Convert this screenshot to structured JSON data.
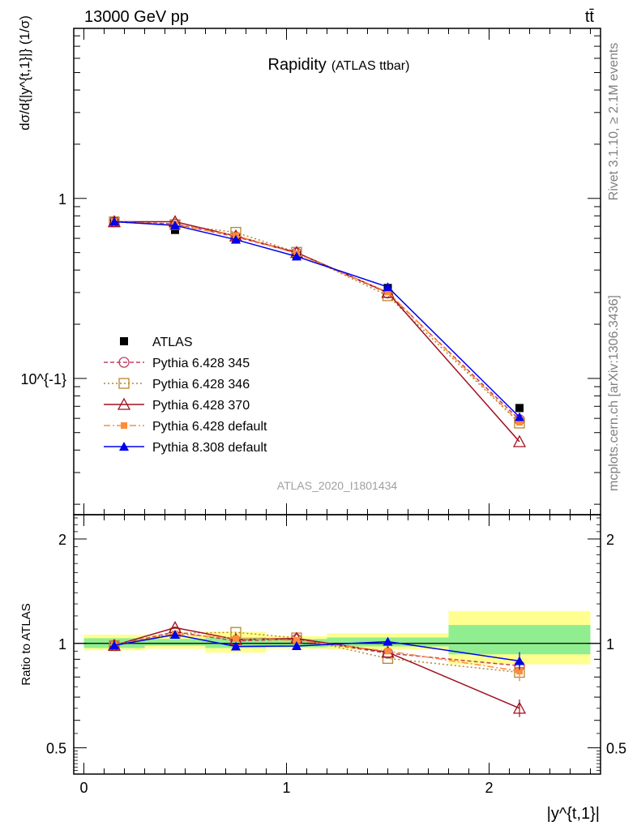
{
  "header": {
    "energy_label": "13000 GeV pp",
    "process_label": "tt̄",
    "ylabel": "dσ/d{|y^{t,1}|} (1/σ)",
    "ratio_ylabel": "Ratio to ATLAS",
    "xlabel": "|y^{t,1}|"
  },
  "title": {
    "main": "Rapidity",
    "sub": "(ATLAS ttbar)"
  },
  "watermark": "ATLAS_2020_I1801434",
  "side_labels": {
    "rivet": "Rivet 3.1.10, ≥ 2.1M events",
    "mcplots": "mcplots.cern.ch [arXiv:1306.3436]"
  },
  "colors": {
    "ATLAS": "#000000",
    "Pythia 6.428 345": "#c04060",
    "Pythia 6.428 346": "#b8862b",
    "Pythia 6.428 370": "#a01020",
    "Pythia 6.428 default": "#ff8c3a",
    "Pythia 8.308 default": "#0000ee",
    "band_inner": "#90ee90",
    "band_outer": "#ffff90"
  },
  "chart_data": [
    {
      "type": "line",
      "panel": "main",
      "title": "Rapidity (ATLAS ttbar)",
      "xlabel": "|y^{t,1}|",
      "ylabel": "dσ/d{|y^{t,1}|} (1/σ)",
      "xlim": [
        -0.05,
        2.55
      ],
      "ylim": [
        0.0175,
        8.8
      ],
      "yscale": "log",
      "ytick_labels": [
        "10^{-1}",
        "1"
      ],
      "xtick_labels": [
        "0",
        "1",
        "2"
      ],
      "x": [
        0.15,
        0.45,
        0.75,
        1.05,
        1.5,
        2.15
      ],
      "bin_edges": [
        0.0,
        0.3,
        0.6,
        0.9,
        1.2,
        1.8,
        2.5
      ],
      "legend_position": "center-left",
      "series": [
        {
          "name": "ATLAS",
          "values": [
            0.752,
            0.668,
            0.602,
            0.484,
            0.318,
            0.0685
          ]
        },
        {
          "name": "Pythia 6.428 345",
          "values": [
            0.742,
            0.722,
            0.612,
            0.498,
            0.298,
            0.059
          ]
        },
        {
          "name": "Pythia 6.428 346",
          "values": [
            0.74,
            0.715,
            0.648,
            0.502,
            0.288,
            0.0565
          ]
        },
        {
          "name": "Pythia 6.428 370",
          "values": [
            0.742,
            0.742,
            0.618,
            0.5,
            0.3,
            0.0445
          ]
        },
        {
          "name": "Pythia 6.428 default",
          "values": [
            0.745,
            0.712,
            0.622,
            0.494,
            0.302,
            0.057
          ]
        },
        {
          "name": "Pythia 8.308 default",
          "values": [
            0.742,
            0.708,
            0.59,
            0.476,
            0.322,
            0.061
          ]
        }
      ]
    },
    {
      "type": "line",
      "panel": "ratio",
      "ylabel": "Ratio to ATLAS",
      "xlabel": "|y^{t,1}|",
      "xlim": [
        -0.05,
        2.55
      ],
      "ylim": [
        0.42,
        2.35
      ],
      "yscale": "log",
      "ytick_labels": [
        "0.5",
        "1",
        "2"
      ],
      "x": [
        0.15,
        0.45,
        0.75,
        1.05,
        1.5,
        2.15
      ],
      "band_inner": [
        [
          0.97,
          1.035
        ],
        [
          0.985,
          1.03
        ],
        [
          0.97,
          1.04
        ],
        [
          0.975,
          1.03
        ],
        [
          0.98,
          1.04
        ],
        [
          0.93,
          1.13
        ]
      ],
      "band_outer": [
        [
          0.955,
          1.06
        ],
        [
          0.965,
          1.06
        ],
        [
          0.94,
          1.08
        ],
        [
          0.965,
          1.05
        ],
        [
          0.96,
          1.07
        ],
        [
          0.87,
          1.24
        ]
      ],
      "series": [
        {
          "name": "Pythia 6.428 345",
          "values": [
            0.987,
            1.08,
            1.017,
            1.028,
            0.937,
            0.862
          ]
        },
        {
          "name": "Pythia 6.428 346",
          "values": [
            0.985,
            1.07,
            1.076,
            1.037,
            0.905,
            0.825
          ]
        },
        {
          "name": "Pythia 6.428 370",
          "values": [
            0.987,
            1.11,
            1.027,
            1.033,
            0.943,
            0.65
          ]
        },
        {
          "name": "Pythia 6.428 default",
          "values": [
            0.991,
            1.066,
            1.033,
            1.02,
            0.95,
            0.832
          ]
        },
        {
          "name": "Pythia 8.308 default",
          "values": [
            0.987,
            1.06,
            0.98,
            0.983,
            1.012,
            0.89
          ]
        }
      ]
    }
  ]
}
